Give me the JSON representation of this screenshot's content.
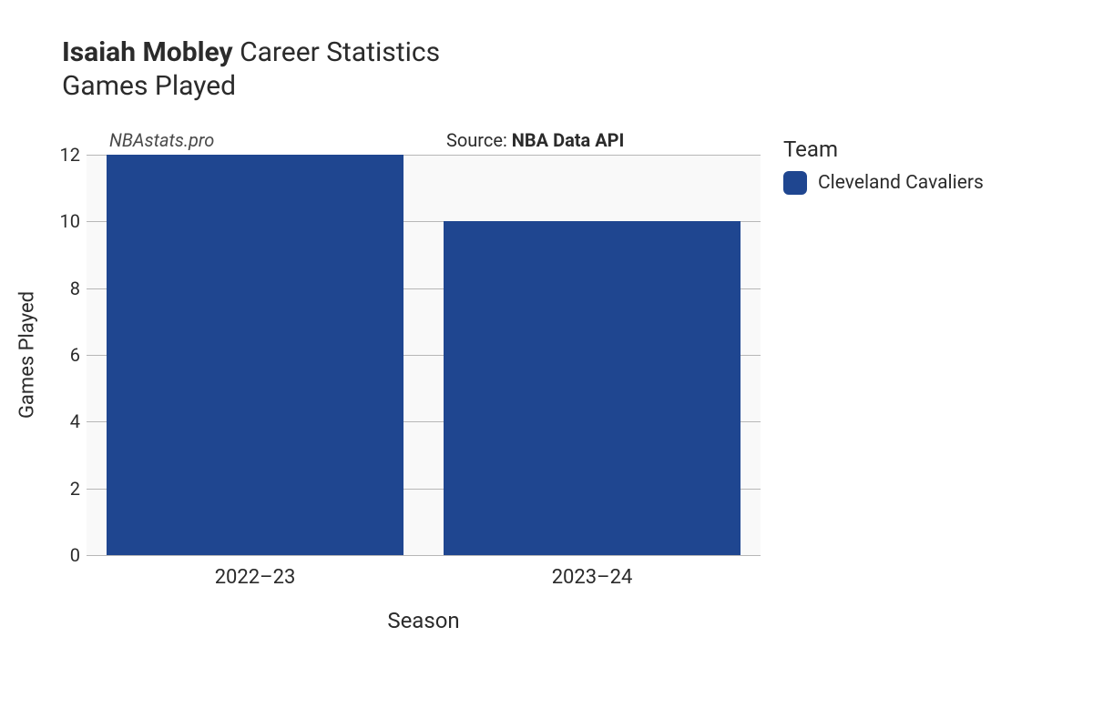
{
  "title": {
    "player_name": "Isaiah Mobley",
    "suffix": " Career Statistics",
    "subtitle": "Games Played",
    "fontsize": 30,
    "color": "#2b2b2b"
  },
  "watermark": {
    "text": "NBAstats.pro",
    "fontsize": 20,
    "color": "#4a4a4a"
  },
  "source": {
    "prefix": "Source: ",
    "name": "NBA Data API",
    "fontsize": 20
  },
  "chart": {
    "type": "bar",
    "background_color": "#f9f9f9",
    "grid_color": "#b7b7b7",
    "categories": [
      "2022–23",
      "2023–24"
    ],
    "values": [
      12,
      10
    ],
    "bar_colors": [
      "#1f4690",
      "#1f4690"
    ],
    "bar_width": 0.88,
    "xlabel": "Season",
    "ylabel": "Games Played",
    "label_fontsize": 22,
    "tick_fontsize": 20,
    "ylim": [
      0,
      12
    ],
    "ytick_step": 2
  },
  "legend": {
    "title": "Team",
    "items": [
      {
        "label": "Cleveland Cavaliers",
        "color": "#1f4690"
      }
    ],
    "title_fontsize": 24,
    "item_fontsize": 21
  }
}
